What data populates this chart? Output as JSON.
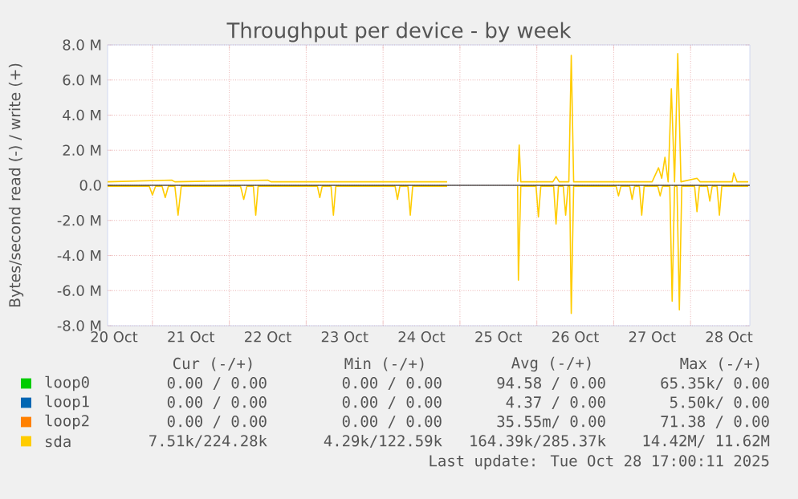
{
  "chart_data": {
    "type": "line",
    "title": "Throughput per device - by week",
    "ylabel": "Bytes/second read (-) / write (+)",
    "xlim": [
      "2025-10-20T10:00",
      "2025-10-28T18:30"
    ],
    "xticks": [
      {
        "value": "2025-10-21T00:00",
        "label": null
      },
      {
        "value": "2025-10-22T00:00",
        "label": null
      },
      {
        "value": "2025-10-23T00:00",
        "label": null
      },
      {
        "value": "2025-10-24T00:00",
        "label": null
      },
      {
        "value": "2025-10-25T00:00",
        "label": null
      },
      {
        "value": "2025-10-26T00:00",
        "label": null
      },
      {
        "value": "2025-10-27T00:00",
        "label": null
      },
      {
        "value": "2025-10-28T00:00",
        "label": null
      },
      {
        "value": "2025-10-20T12:00",
        "label": "20 Oct"
      },
      {
        "value": "2025-10-21T12:00",
        "label": "21 Oct"
      },
      {
        "value": "2025-10-22T12:00",
        "label": "22 Oct"
      },
      {
        "value": "2025-10-23T12:00",
        "label": "23 Oct"
      },
      {
        "value": "2025-10-24T12:00",
        "label": "24 Oct"
      },
      {
        "value": "2025-10-25T12:00",
        "label": "25 Oct"
      },
      {
        "value": "2025-10-26T12:00",
        "label": "26 Oct"
      },
      {
        "value": "2025-10-27T12:00",
        "label": "27 Oct"
      },
      {
        "value": "2025-10-28T12:00",
        "label": "28 Oct"
      }
    ],
    "ylim": [
      -8000000,
      8000000
    ],
    "yticks": [
      {
        "value": -8000000,
        "label": "-8.0 M"
      },
      {
        "value": -6000000,
        "label": "-6.0 M"
      },
      {
        "value": -4000000,
        "label": "-4.0 M"
      },
      {
        "value": -2000000,
        "label": "-2.0 M"
      },
      {
        "value": 0,
        "label": "0.0"
      },
      {
        "value": 2000000,
        "label": "2.0 M"
      },
      {
        "value": 4000000,
        "label": "4.0 M"
      },
      {
        "value": 6000000,
        "label": "6.0 M"
      },
      {
        "value": 8000000,
        "label": "8.0 M"
      }
    ],
    "grid": true,
    "legend": "bottom",
    "series": [
      {
        "name": "loop0",
        "color": "#00cc00"
      },
      {
        "name": "loop1",
        "color": "#0066b3"
      },
      {
        "name": "loop2",
        "color": "#ff8000"
      },
      {
        "name": "sda",
        "color": "#ffcc00",
        "x": [
          "2025-10-20T10:00",
          "2025-10-21T06:00",
          "2025-10-21T07:00",
          "2025-10-22T12:00",
          "2025-10-22T13:00",
          "2025-10-24T20:00",
          "2025-10-25T12:00",
          "2025-10-25T18:00",
          "2025-10-25T18:30",
          "2025-10-25T19:00",
          "2025-10-26T05:00",
          "2025-10-26T06:00",
          "2025-10-26T07:00",
          "2025-10-26T10:00",
          "2025-10-26T10:45",
          "2025-10-26T11:30",
          "2025-10-27T12:00",
          "2025-10-27T14:00",
          "2025-10-27T15:00",
          "2025-10-27T16:00",
          "2025-10-27T17:00",
          "2025-10-27T18:00",
          "2025-10-27T19:00",
          "2025-10-27T20:00",
          "2025-10-27T21:00",
          "2025-10-28T02:00",
          "2025-10-28T03:00",
          "2025-10-28T13:00",
          "2025-10-28T13:30",
          "2025-10-28T14:30",
          "2025-10-28T18:00"
        ],
        "values": [
          200000,
          300000,
          200000,
          300000,
          200000,
          200000,
          null,
          200000,
          2300000,
          200000,
          200000,
          500000,
          200000,
          200000,
          7400000,
          200000,
          200000,
          1000000,
          400000,
          1600000,
          200000,
          5500000,
          200000,
          7500000,
          200000,
          400000,
          200000,
          200000,
          700000,
          200000,
          200000
        ]
      },
      {
        "color": "#ffcc00",
        "x": [
          "2025-10-20T10:00",
          "2025-10-20T23:00",
          "2025-10-21T00:00",
          "2025-10-21T01:00",
          "2025-10-21T03:00",
          "2025-10-21T04:00",
          "2025-10-21T05:00",
          "2025-10-21T07:00",
          "2025-10-21T08:00",
          "2025-10-21T09:00",
          "2025-10-22T03:30",
          "2025-10-22T04:30",
          "2025-10-22T05:30",
          "2025-10-22T07:30",
          "2025-10-22T08:15",
          "2025-10-22T09:00",
          "2025-10-23T03:30",
          "2025-10-23T04:15",
          "2025-10-23T05:00",
          "2025-10-23T07:45",
          "2025-10-23T08:30",
          "2025-10-23T09:15",
          "2025-10-24T03:45",
          "2025-10-24T04:30",
          "2025-10-24T05:15",
          "2025-10-24T07:45",
          "2025-10-24T08:30",
          "2025-10-24T09:15",
          "2025-10-24T20:00",
          "2025-10-25T12:00",
          "2025-10-25T18:00",
          "2025-10-25T18:15",
          "2025-10-25T19:00",
          "2025-10-25T23:45",
          "2025-10-26T00:30",
          "2025-10-26T01:15",
          "2025-10-26T05:15",
          "2025-10-26T06:00",
          "2025-10-26T06:45",
          "2025-10-26T08:15",
          "2025-10-26T09:00",
          "2025-10-26T09:45",
          "2025-10-26T10:15",
          "2025-10-26T10:45",
          "2025-10-26T11:30",
          "2025-10-27T00:45",
          "2025-10-27T01:30",
          "2025-10-27T02:15",
          "2025-10-27T05:00",
          "2025-10-27T05:45",
          "2025-10-27T06:30",
          "2025-10-27T08:00",
          "2025-10-27T08:45",
          "2025-10-27T09:30",
          "2025-10-27T13:45",
          "2025-10-27T14:30",
          "2025-10-27T15:15",
          "2025-10-27T17:30",
          "2025-10-27T18:15",
          "2025-10-27T19:00",
          "2025-10-27T19:45",
          "2025-10-27T20:30",
          "2025-10-27T21:15",
          "2025-10-28T01:15",
          "2025-10-28T02:00",
          "2025-10-28T02:45",
          "2025-10-28T05:15",
          "2025-10-28T06:00",
          "2025-10-28T06:45",
          "2025-10-28T08:15",
          "2025-10-28T09:00",
          "2025-10-28T09:45",
          "2025-10-28T18:00"
        ],
        "values": [
          -50000,
          -50000,
          -550000,
          -50000,
          -50000,
          -700000,
          -50000,
          -50000,
          -1700000,
          -50000,
          -50000,
          -800000,
          -50000,
          -50000,
          -1700000,
          -50000,
          -50000,
          -700000,
          -50000,
          -50000,
          -1700000,
          -50000,
          -50000,
          -800000,
          -50000,
          -50000,
          -1700000,
          -50000,
          -50000,
          null,
          -50000,
          -5400000,
          -50000,
          -50000,
          -1800000,
          -50000,
          -50000,
          -2200000,
          -50000,
          -50000,
          -1700000,
          -50000,
          -50000,
          -7300000,
          -50000,
          -50000,
          -600000,
          -50000,
          -50000,
          -800000,
          -50000,
          -50000,
          -1700000,
          -50000,
          -50000,
          -600000,
          -50000,
          -50000,
          -6600000,
          -50000,
          -50000,
          -7100000,
          -50000,
          -50000,
          -1500000,
          -50000,
          -50000,
          -900000,
          -50000,
          -50000,
          -1700000,
          -50000,
          -50000
        ]
      }
    ],
    "annotations": [
      "Cur (-/+)",
      "Min (-/+)",
      "Avg (-/+)",
      "Max (-/+)",
      "0.00 / 0.00",
      "0.00 / 0.00",
      "94.58 / 0.00",
      "65.35k/ 0.00",
      "0.00 / 0.00",
      "0.00 / 0.00",
      "4.37 / 0.00",
      "5.50k/ 0.00",
      "0.00 / 0.00",
      "0.00 / 0.00",
      "35.55m/ 0.00",
      "71.38 / 0.00",
      "7.51k/224.28k",
      "4.29k/122.59k",
      "164.39k/285.37k",
      "14.42M/ 11.62M",
      "Last update: Tue Oct 28 17:00:11 2025"
    ]
  }
}
